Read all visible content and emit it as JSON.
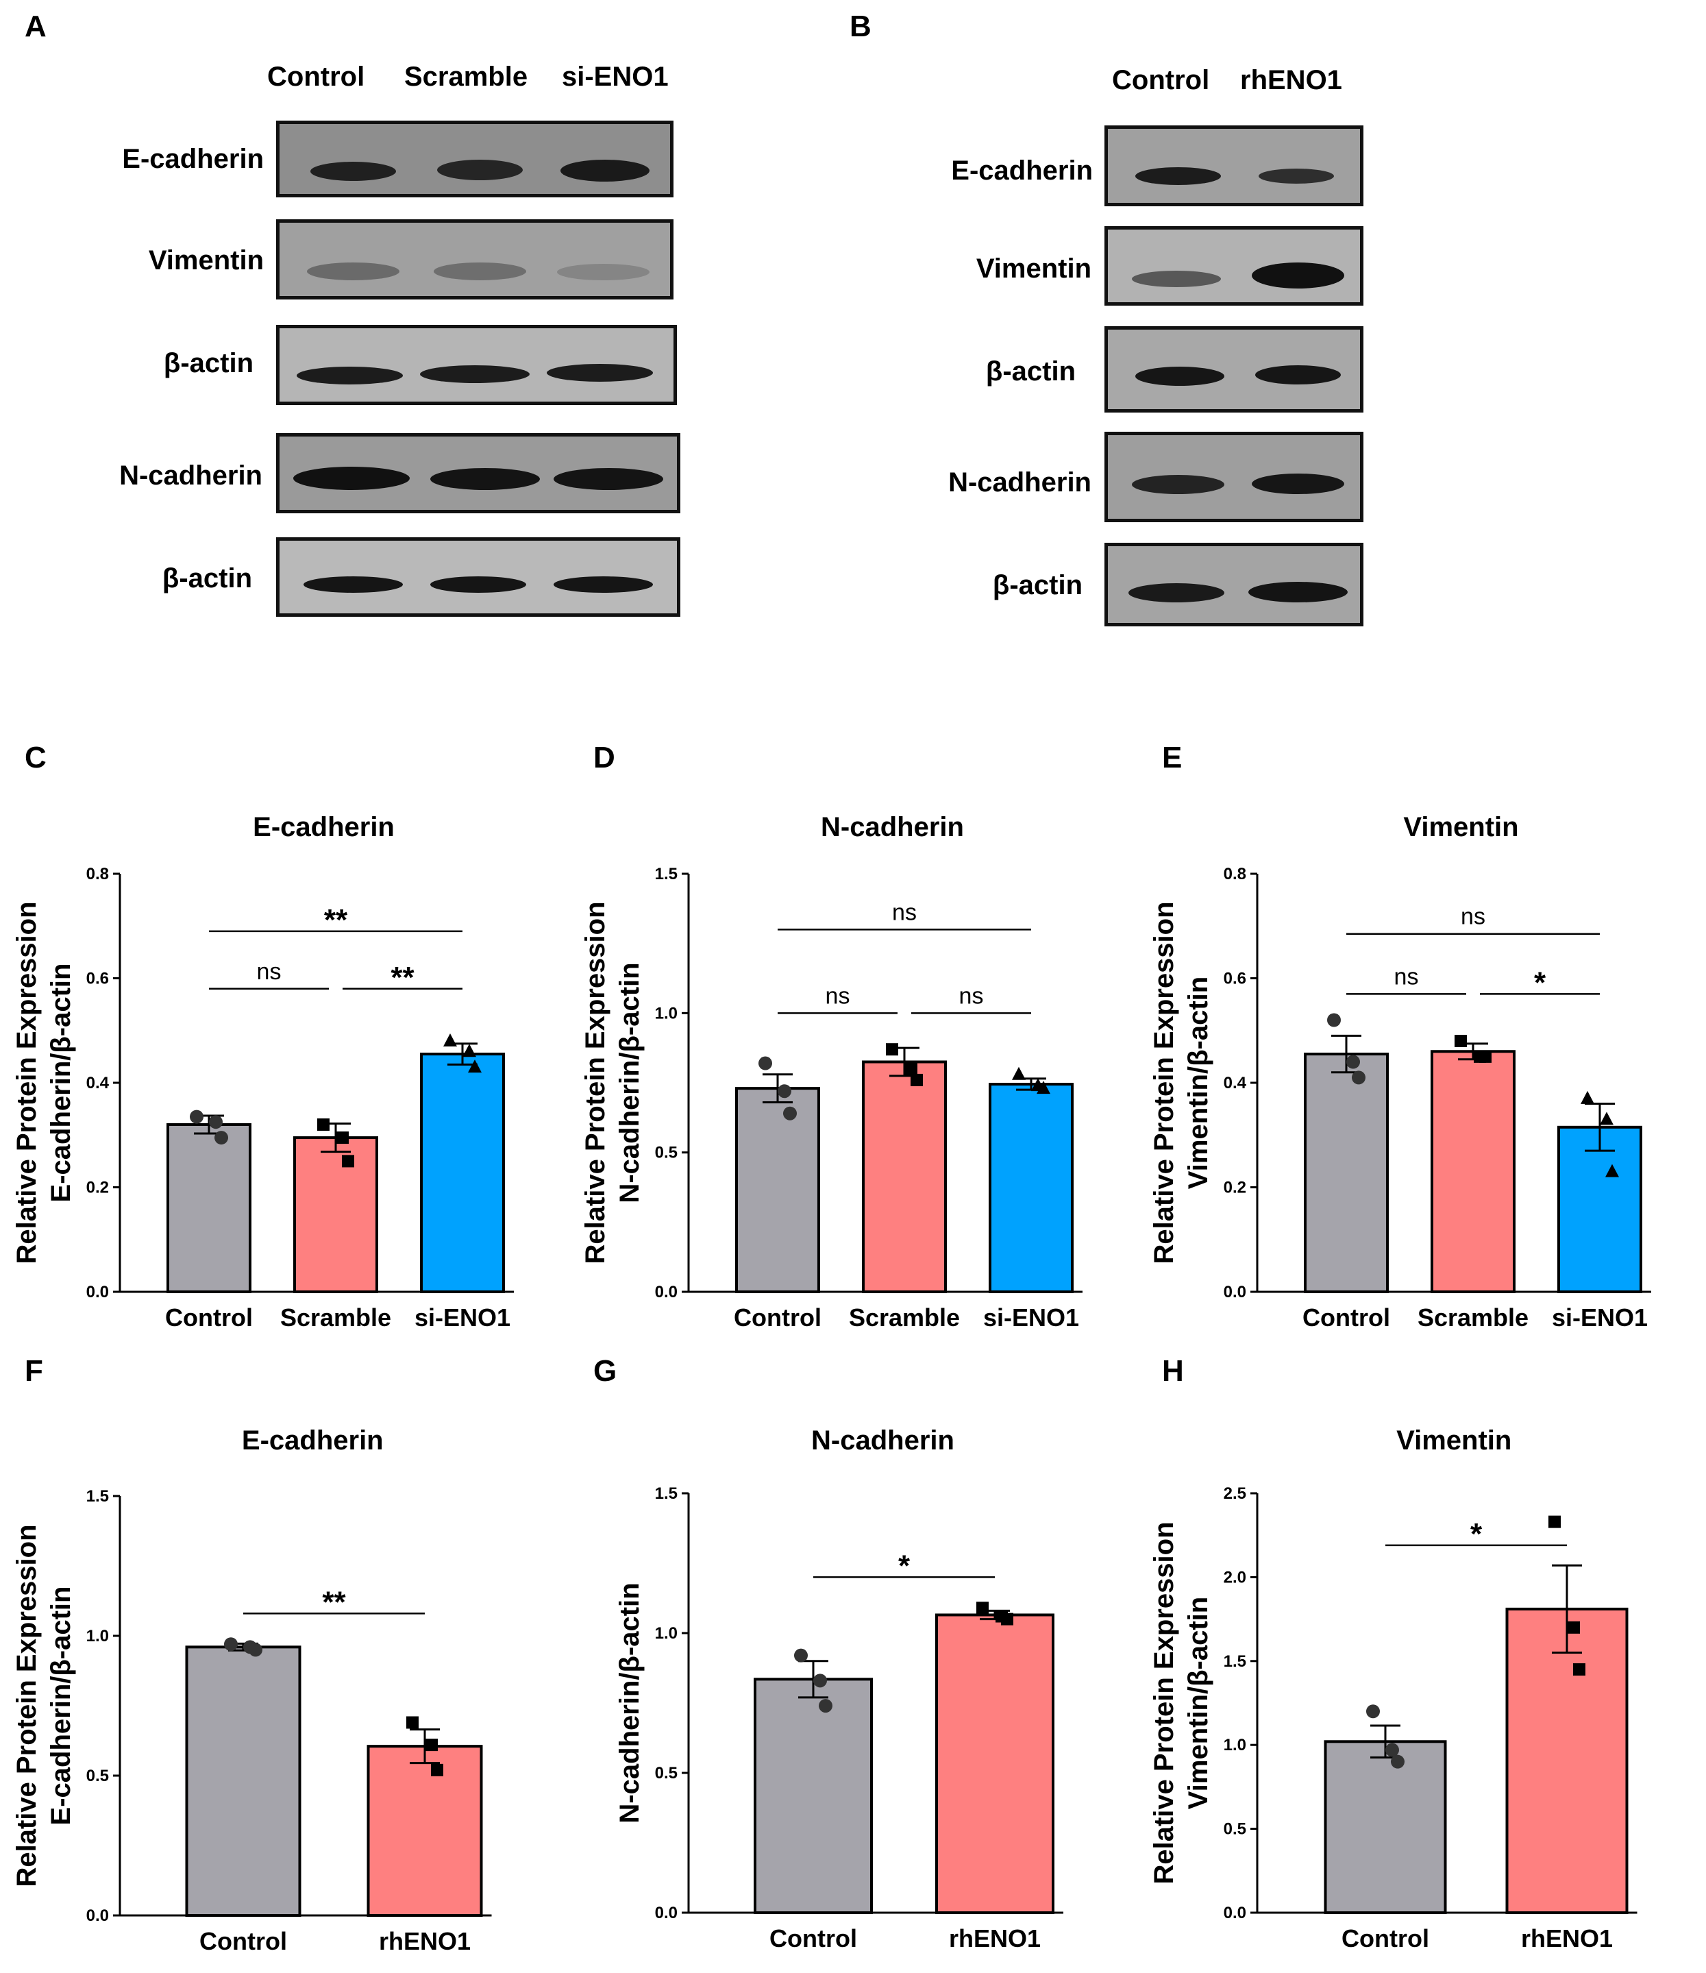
{
  "panels": {
    "A": {
      "letter": "A",
      "lanes": [
        "Control",
        "Scramble",
        "si-ENO1"
      ],
      "rows": [
        "E-cadherin",
        "Vimentin",
        "β-actin",
        "N-cadherin",
        "β-actin"
      ]
    },
    "B": {
      "letter": "B",
      "lanes": [
        "Control",
        "rhENO1"
      ],
      "rows": [
        "E-cadherin",
        "Vimentin",
        "β-actin",
        "N-cadherin",
        "β-actin"
      ]
    }
  },
  "colors": {
    "control": "#a5a4ab",
    "scramble": "#fe8080",
    "sieno1": "#00a2fe",
    "axis": "#000000"
  },
  "chart_data": [
    {
      "id": "C",
      "letter": "C",
      "type": "bar",
      "title": "E-cadherin",
      "ylabel_line1": "Relative Protein Expression",
      "ylabel_line2": "E-cadherin/β-actin",
      "categories": [
        "Control",
        "Scramble",
        "si-ENO1"
      ],
      "values": [
        0.32,
        0.295,
        0.455
      ],
      "errors": [
        0.017,
        0.027,
        0.02
      ],
      "points": [
        [
          0.335,
          0.325,
          0.295
        ],
        [
          0.32,
          0.295,
          0.25
        ],
        [
          0.48,
          0.46,
          0.43
        ]
      ],
      "markers": [
        "circle",
        "square",
        "triangle"
      ],
      "colors": [
        "#a5a4ab",
        "#fe8080",
        "#00a2fe"
      ],
      "ylim": [
        0,
        0.8
      ],
      "yticks": [
        "0.0",
        "0.2",
        "0.4",
        "0.6",
        "0.8"
      ],
      "brackets": [
        {
          "from": 0,
          "to": 2,
          "y": 0.69,
          "label": "**"
        },
        {
          "from": 0,
          "to": 1,
          "y": 0.58,
          "label": "ns"
        },
        {
          "from": 1,
          "to": 2,
          "y": 0.58,
          "label": "**"
        }
      ]
    },
    {
      "id": "D",
      "letter": "D",
      "type": "bar",
      "title": "N-cadherin",
      "ylabel_line1": "Relative Protein Expression",
      "ylabel_line2": "N-cadherin/β-actin",
      "categories": [
        "Control",
        "Scramble",
        "si-ENO1"
      ],
      "values": [
        0.73,
        0.825,
        0.745
      ],
      "errors": [
        0.05,
        0.05,
        0.02
      ],
      "points": [
        [
          0.82,
          0.72,
          0.64
        ],
        [
          0.87,
          0.8,
          0.76
        ],
        [
          0.78,
          0.74,
          0.73
        ]
      ],
      "markers": [
        "circle",
        "square",
        "triangle"
      ],
      "colors": [
        "#a5a4ab",
        "#fe8080",
        "#00a2fe"
      ],
      "ylim": [
        0,
        1.5
      ],
      "yticks": [
        "0.0",
        "0.5",
        "1.0",
        "1.5"
      ],
      "brackets": [
        {
          "from": 0,
          "to": 2,
          "y": 1.3,
          "label": "ns"
        },
        {
          "from": 0,
          "to": 1,
          "y": 1.0,
          "label": "ns"
        },
        {
          "from": 1,
          "to": 2,
          "y": 1.0,
          "label": "ns"
        }
      ]
    },
    {
      "id": "E",
      "letter": "E",
      "type": "bar",
      "title": "Vimentin",
      "ylabel_line1": "Relative Protein Expression",
      "ylabel_line2": "Vimentin/β-actin",
      "categories": [
        "Control",
        "Scramble",
        "si-ENO1"
      ],
      "values": [
        0.455,
        0.46,
        0.315
      ],
      "errors": [
        0.035,
        0.015,
        0.045
      ],
      "points": [
        [
          0.52,
          0.44,
          0.41
        ],
        [
          0.48,
          0.45,
          0.45
        ],
        [
          0.37,
          0.33,
          0.23
        ]
      ],
      "markers": [
        "circle",
        "square",
        "triangle"
      ],
      "colors": [
        "#a5a4ab",
        "#fe8080",
        "#00a2fe"
      ],
      "ylim": [
        0,
        0.8
      ],
      "yticks": [
        "0.0",
        "0.2",
        "0.4",
        "0.6",
        "0.8"
      ],
      "brackets": [
        {
          "from": 0,
          "to": 2,
          "y": 0.685,
          "label": "ns"
        },
        {
          "from": 0,
          "to": 1,
          "y": 0.57,
          "label": "ns"
        },
        {
          "from": 1,
          "to": 2,
          "y": 0.57,
          "label": "*"
        }
      ]
    },
    {
      "id": "F",
      "letter": "F",
      "type": "bar",
      "title": "E-cadherin",
      "ylabel_line1": "Relative Protein Expression",
      "ylabel_line2": "E-cadherin/β-actin",
      "categories": [
        "Control",
        "rhENO1"
      ],
      "values": [
        0.96,
        0.605
      ],
      "errors": [
        0.012,
        0.06
      ],
      "points": [
        [
          0.97,
          0.96,
          0.95
        ],
        [
          0.69,
          0.61,
          0.52
        ]
      ],
      "markers": [
        "circle",
        "square"
      ],
      "colors": [
        "#a5a4ab",
        "#fe8080"
      ],
      "ylim": [
        0,
        1.5
      ],
      "yticks": [
        "0.0",
        "0.5",
        "1.0",
        "1.5"
      ],
      "brackets": [
        {
          "from": 0,
          "to": 1,
          "y": 1.08,
          "label": "**"
        }
      ]
    },
    {
      "id": "G",
      "letter": "G",
      "type": "bar",
      "title": "N-cadherin",
      "ylabel_line1": "",
      "ylabel_line2": "N-cadherin/β-actin",
      "categories": [
        "Control",
        "rhENO1"
      ],
      "values": [
        0.835,
        1.065
      ],
      "errors": [
        0.065,
        0.015
      ],
      "points": [
        [
          0.92,
          0.83,
          0.74
        ],
        [
          1.09,
          1.06,
          1.05
        ]
      ],
      "markers": [
        "circle",
        "square"
      ],
      "colors": [
        "#a5a4ab",
        "#fe8080"
      ],
      "ylim": [
        0,
        1.5
      ],
      "yticks": [
        "0.0",
        "0.5",
        "1.0",
        "1.5"
      ],
      "brackets": [
        {
          "from": 0,
          "to": 1,
          "y": 1.2,
          "label": "*"
        }
      ]
    },
    {
      "id": "H",
      "letter": "H",
      "type": "bar",
      "title": "Vimentin",
      "ylabel_line1": "Relative Protein Expression",
      "ylabel_line2": "Vimentin/β-actin",
      "categories": [
        "Control",
        "rhENO1"
      ],
      "values": [
        1.02,
        1.81
      ],
      "errors": [
        0.095,
        0.26
      ],
      "points": [
        [
          1.2,
          0.97,
          0.9
        ],
        [
          2.33,
          1.7,
          1.45
        ]
      ],
      "markers": [
        "circle",
        "square"
      ],
      "colors": [
        "#a5a4ab",
        "#fe8080"
      ],
      "ylim": [
        0,
        2.5
      ],
      "yticks": [
        "0.0",
        "0.5",
        "1.0",
        "1.5",
        "2.0",
        "2.5"
      ],
      "brackets": [
        {
          "from": 0,
          "to": 1,
          "y": 2.19,
          "label": "*"
        }
      ]
    }
  ]
}
